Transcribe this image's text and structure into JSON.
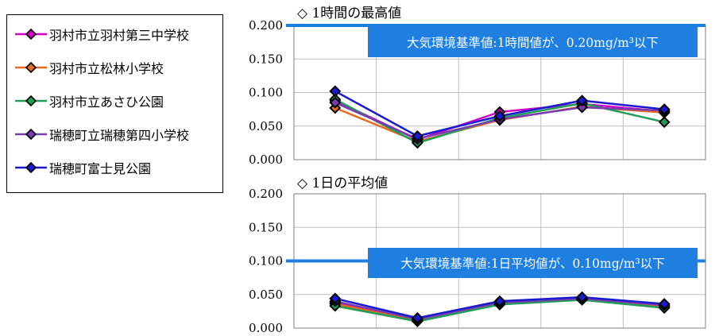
{
  "legend": {
    "items": [
      {
        "label": "羽村市立羽村第三中学校",
        "color": "#d400c8"
      },
      {
        "label": "羽村市立松林小学校",
        "color": "#e86a1e"
      },
      {
        "label": "羽村市立あさひ公園",
        "color": "#1f9e58"
      },
      {
        "label": "瑞穂町立瑞穂第四小学校",
        "color": "#7a3cb0"
      },
      {
        "label": "瑞穂町富士見公園",
        "color": "#1a1ad0"
      }
    ]
  },
  "colors": {
    "standard_line": "#1e7fe0",
    "standard_box": "#1e7fe0",
    "grid": "#bfbfbf"
  },
  "chart_data": [
    {
      "type": "line",
      "title": "◇ 1時間の最高値",
      "ylim": [
        0,
        0.2
      ],
      "yticks": [
        "0.000",
        "0.050",
        "0.100",
        "0.150",
        "0.200"
      ],
      "ytick_values": [
        0,
        0.05,
        0.1,
        0.15,
        0.2
      ],
      "x": [
        1,
        2,
        3,
        4,
        5
      ],
      "grid": true,
      "standard": {
        "value": 0.2,
        "label": "大気環境基準値:1時間値が、0.20mg/m³以下"
      },
      "series": [
        {
          "name": "羽村市立羽村第三中学校",
          "values": [
            0.088,
            0.03,
            0.071,
            0.083,
            0.072
          ]
        },
        {
          "name": "羽村市立松林小学校",
          "values": [
            0.077,
            0.027,
            0.059,
            0.079,
            0.07
          ]
        },
        {
          "name": "羽村市立あさひ公園",
          "values": [
            0.09,
            0.025,
            0.062,
            0.084,
            0.056
          ]
        },
        {
          "name": "瑞穂町立瑞穂第四小学校",
          "values": [
            0.085,
            0.031,
            0.06,
            0.078,
            0.073
          ]
        },
        {
          "name": "瑞穂町富士見公園",
          "values": [
            0.102,
            0.035,
            0.065,
            0.088,
            0.075
          ]
        }
      ]
    },
    {
      "type": "line",
      "title": "◇ 1日の平均値",
      "ylim": [
        0,
        0.2
      ],
      "yticks": [
        "0.000",
        "0.050",
        "0.100",
        "0.150",
        "0.200"
      ],
      "ytick_values": [
        0,
        0.05,
        0.1,
        0.15,
        0.2
      ],
      "x": [
        1,
        2,
        3,
        4,
        5
      ],
      "grid": true,
      "standard": {
        "value": 0.1,
        "label": "大気環境基準値:1日平均値が、0.10mg/m³以下"
      },
      "series": [
        {
          "name": "羽村市立羽村第三中学校",
          "values": [
            0.038,
            0.012,
            0.038,
            0.044,
            0.034
          ]
        },
        {
          "name": "羽村市立松林小学校",
          "values": [
            0.036,
            0.011,
            0.036,
            0.043,
            0.032
          ]
        },
        {
          "name": "羽村市立あさひ公園",
          "values": [
            0.033,
            0.01,
            0.035,
            0.042,
            0.03
          ]
        },
        {
          "name": "瑞穂町立瑞穂第四小学校",
          "values": [
            0.04,
            0.013,
            0.038,
            0.044,
            0.034
          ]
        },
        {
          "name": "瑞穂町富士見公園",
          "values": [
            0.044,
            0.015,
            0.04,
            0.046,
            0.036
          ]
        }
      ]
    }
  ]
}
